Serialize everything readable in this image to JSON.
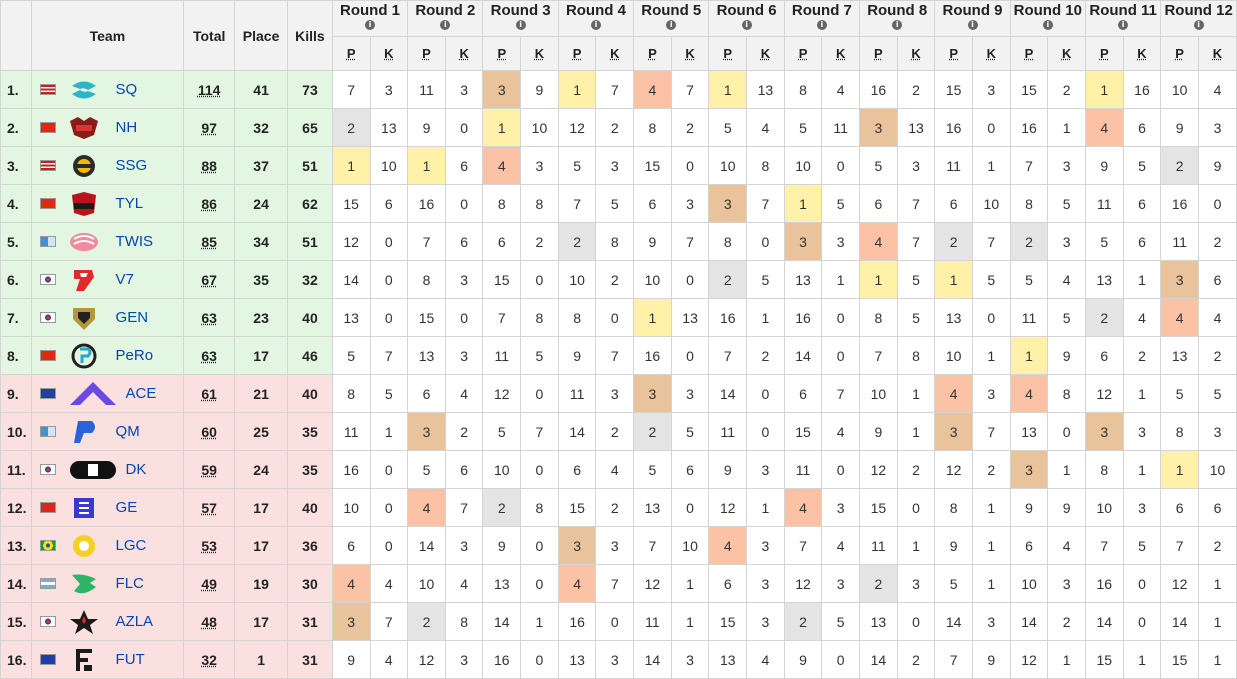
{
  "headers": {
    "team": "Team",
    "total": "Total",
    "place": "Place",
    "kills": "Kills",
    "p": "P",
    "k": "K",
    "info_icon": "i",
    "rounds": [
      "Round 1",
      "Round 2",
      "Round 3",
      "Round 4",
      "Round 5",
      "Round 6",
      "Round 7",
      "Round 8",
      "Round 9",
      "Round 10",
      "Round 11",
      "Round 12"
    ]
  },
  "placement_colors": {
    "1": "#fff1a8",
    "2": "#e4e4e4",
    "3": "#e8c39b",
    "4": "#fbc2a6"
  },
  "row_colors": {
    "qualified": "#e2f6e2",
    "eliminated": "#fbe0e0"
  },
  "rows": [
    {
      "rank": "1.",
      "flag": "us-flag",
      "logo": "sq-logo",
      "team": "SQ",
      "total": "114",
      "place": "41",
      "kills": "73",
      "zone": "g",
      "rounds": [
        [
          7,
          3
        ],
        [
          11,
          3
        ],
        [
          3,
          9
        ],
        [
          1,
          7
        ],
        [
          4,
          7
        ],
        [
          1,
          13
        ],
        [
          8,
          4
        ],
        [
          16,
          2
        ],
        [
          15,
          3
        ],
        [
          15,
          2
        ],
        [
          1,
          16
        ],
        [
          10,
          4
        ]
      ]
    },
    {
      "rank": "2.",
      "flag": "cn-flag",
      "logo": "nh-logo",
      "team": "NH",
      "total": "97",
      "place": "32",
      "kills": "65",
      "zone": "g",
      "rounds": [
        [
          2,
          13
        ],
        [
          9,
          0
        ],
        [
          1,
          10
        ],
        [
          12,
          2
        ],
        [
          8,
          2
        ],
        [
          5,
          4
        ],
        [
          5,
          11
        ],
        [
          3,
          13
        ],
        [
          16,
          0
        ],
        [
          16,
          1
        ],
        [
          4,
          6
        ],
        [
          9,
          3
        ]
      ]
    },
    {
      "rank": "3.",
      "flag": "us-flag",
      "logo": "ssg-logo",
      "team": "SSG",
      "total": "88",
      "place": "37",
      "kills": "51",
      "zone": "g",
      "rounds": [
        [
          1,
          10
        ],
        [
          1,
          6
        ],
        [
          4,
          3
        ],
        [
          5,
          3
        ],
        [
          15,
          0
        ],
        [
          10,
          8
        ],
        [
          10,
          0
        ],
        [
          5,
          3
        ],
        [
          11,
          1
        ],
        [
          7,
          3
        ],
        [
          9,
          5
        ],
        [
          2,
          9
        ]
      ]
    },
    {
      "rank": "4.",
      "flag": "cn-flag",
      "logo": "tyl-logo",
      "team": "TYL",
      "total": "86",
      "place": "24",
      "kills": "62",
      "zone": "g",
      "rounds": [
        [
          15,
          6
        ],
        [
          16,
          0
        ],
        [
          8,
          8
        ],
        [
          7,
          5
        ],
        [
          6,
          3
        ],
        [
          3,
          7
        ],
        [
          1,
          5
        ],
        [
          6,
          7
        ],
        [
          6,
          10
        ],
        [
          8,
          5
        ],
        [
          11,
          6
        ],
        [
          16,
          0
        ]
      ]
    },
    {
      "rank": "5.",
      "flag": "tw-flag",
      "logo": "twis-logo",
      "team": "TWIS",
      "total": "85",
      "place": "34",
      "kills": "51",
      "zone": "g",
      "rounds": [
        [
          12,
          0
        ],
        [
          7,
          6
        ],
        [
          6,
          2
        ],
        [
          2,
          8
        ],
        [
          9,
          7
        ],
        [
          8,
          0
        ],
        [
          3,
          3
        ],
        [
          4,
          7
        ],
        [
          2,
          7
        ],
        [
          2,
          3
        ],
        [
          5,
          6
        ],
        [
          11,
          2
        ]
      ]
    },
    {
      "rank": "6.",
      "flag": "kr-flag",
      "logo": "v7-logo",
      "team": "V7",
      "total": "67",
      "place": "35",
      "kills": "32",
      "zone": "g",
      "rounds": [
        [
          14,
          0
        ],
        [
          8,
          3
        ],
        [
          15,
          0
        ],
        [
          10,
          2
        ],
        [
          10,
          0
        ],
        [
          2,
          5
        ],
        [
          13,
          1
        ],
        [
          1,
          5
        ],
        [
          1,
          5
        ],
        [
          5,
          4
        ],
        [
          13,
          1
        ],
        [
          3,
          6
        ]
      ]
    },
    {
      "rank": "7.",
      "flag": "kr-flag",
      "logo": "gen-logo",
      "team": "GEN",
      "total": "63",
      "place": "23",
      "kills": "40",
      "zone": "g",
      "rounds": [
        [
          13,
          0
        ],
        [
          15,
          0
        ],
        [
          7,
          8
        ],
        [
          8,
          0
        ],
        [
          1,
          13
        ],
        [
          16,
          1
        ],
        [
          16,
          0
        ],
        [
          8,
          5
        ],
        [
          13,
          0
        ],
        [
          11,
          5
        ],
        [
          2,
          4
        ],
        [
          4,
          4
        ]
      ]
    },
    {
      "rank": "8.",
      "flag": "cn-flag",
      "logo": "pero-logo",
      "team": "PeRo",
      "total": "63",
      "place": "17",
      "kills": "46",
      "zone": "g",
      "rounds": [
        [
          5,
          7
        ],
        [
          13,
          3
        ],
        [
          11,
          5
        ],
        [
          9,
          7
        ],
        [
          16,
          0
        ],
        [
          7,
          2
        ],
        [
          14,
          0
        ],
        [
          7,
          8
        ],
        [
          10,
          1
        ],
        [
          1,
          9
        ],
        [
          6,
          2
        ],
        [
          13,
          2
        ]
      ]
    },
    {
      "rank": "9.",
      "flag": "eu-flag",
      "logo": "ace-logo",
      "team": "ACE",
      "total": "61",
      "place": "21",
      "kills": "40",
      "zone": "r",
      "rounds": [
        [
          8,
          5
        ],
        [
          6,
          4
        ],
        [
          12,
          0
        ],
        [
          11,
          3
        ],
        [
          3,
          3
        ],
        [
          14,
          0
        ],
        [
          6,
          7
        ],
        [
          10,
          1
        ],
        [
          4,
          3
        ],
        [
          4,
          8
        ],
        [
          12,
          1
        ],
        [
          5,
          5
        ]
      ]
    },
    {
      "rank": "10.",
      "flag": "tw-flag",
      "logo": "qm-logo",
      "team": "QM",
      "total": "60",
      "place": "25",
      "kills": "35",
      "zone": "r",
      "rounds": [
        [
          11,
          1
        ],
        [
          3,
          2
        ],
        [
          5,
          7
        ],
        [
          14,
          2
        ],
        [
          2,
          5
        ],
        [
          11,
          0
        ],
        [
          15,
          4
        ],
        [
          9,
          1
        ],
        [
          3,
          7
        ],
        [
          13,
          0
        ],
        [
          3,
          3
        ],
        [
          8,
          3
        ]
      ]
    },
    {
      "rank": "11.",
      "flag": "kr-flag",
      "logo": "dk-logo",
      "team": "DK",
      "total": "59",
      "place": "24",
      "kills": "35",
      "zone": "r",
      "rounds": [
        [
          16,
          0
        ],
        [
          5,
          6
        ],
        [
          10,
          0
        ],
        [
          6,
          4
        ],
        [
          5,
          6
        ],
        [
          9,
          3
        ],
        [
          11,
          0
        ],
        [
          12,
          2
        ],
        [
          12,
          2
        ],
        [
          3,
          1
        ],
        [
          8,
          1
        ],
        [
          1,
          10
        ]
      ]
    },
    {
      "rank": "12.",
      "flag": "vn-flag",
      "logo": "ge-logo",
      "team": "GE",
      "total": "57",
      "place": "17",
      "kills": "40",
      "zone": "r",
      "rounds": [
        [
          10,
          0
        ],
        [
          4,
          7
        ],
        [
          2,
          8
        ],
        [
          15,
          2
        ],
        [
          13,
          0
        ],
        [
          12,
          1
        ],
        [
          4,
          3
        ],
        [
          15,
          0
        ],
        [
          8,
          1
        ],
        [
          9,
          9
        ],
        [
          10,
          3
        ],
        [
          6,
          6
        ]
      ]
    },
    {
      "rank": "13.",
      "flag": "br-flag",
      "logo": "lgc-logo",
      "team": "LGC",
      "total": "53",
      "place": "17",
      "kills": "36",
      "zone": "r",
      "rounds": [
        [
          6,
          0
        ],
        [
          14,
          3
        ],
        [
          9,
          0
        ],
        [
          3,
          3
        ],
        [
          7,
          10
        ],
        [
          4,
          3
        ],
        [
          7,
          4
        ],
        [
          11,
          1
        ],
        [
          9,
          1
        ],
        [
          6,
          4
        ],
        [
          7,
          5
        ],
        [
          7,
          2
        ]
      ]
    },
    {
      "rank": "14.",
      "flag": "ar-flag",
      "logo": "flc-logo",
      "team": "FLC",
      "total": "49",
      "place": "19",
      "kills": "30",
      "zone": "r",
      "rounds": [
        [
          4,
          4
        ],
        [
          10,
          4
        ],
        [
          13,
          0
        ],
        [
          4,
          7
        ],
        [
          12,
          1
        ],
        [
          6,
          3
        ],
        [
          12,
          3
        ],
        [
          2,
          3
        ],
        [
          5,
          1
        ],
        [
          10,
          3
        ],
        [
          16,
          0
        ],
        [
          12,
          1
        ]
      ]
    },
    {
      "rank": "15.",
      "flag": "kr-flag",
      "logo": "azla-logo",
      "team": "AZLA",
      "total": "48",
      "place": "17",
      "kills": "31",
      "zone": "r",
      "rounds": [
        [
          3,
          7
        ],
        [
          2,
          8
        ],
        [
          14,
          1
        ],
        [
          16,
          0
        ],
        [
          11,
          1
        ],
        [
          15,
          3
        ],
        [
          2,
          5
        ],
        [
          13,
          0
        ],
        [
          14,
          3
        ],
        [
          14,
          2
        ],
        [
          14,
          0
        ],
        [
          14,
          1
        ]
      ]
    },
    {
      "rank": "16.",
      "flag": "eu-flag",
      "logo": "fut-logo",
      "team": "FUT",
      "total": "32",
      "place": "1",
      "kills": "31",
      "zone": "r",
      "rounds": [
        [
          9,
          4
        ],
        [
          12,
          3
        ],
        [
          16,
          0
        ],
        [
          13,
          3
        ],
        [
          14,
          3
        ],
        [
          13,
          4
        ],
        [
          9,
          0
        ],
        [
          14,
          2
        ],
        [
          7,
          9
        ],
        [
          12,
          1
        ],
        [
          15,
          1
        ],
        [
          15,
          1
        ]
      ]
    }
  ]
}
